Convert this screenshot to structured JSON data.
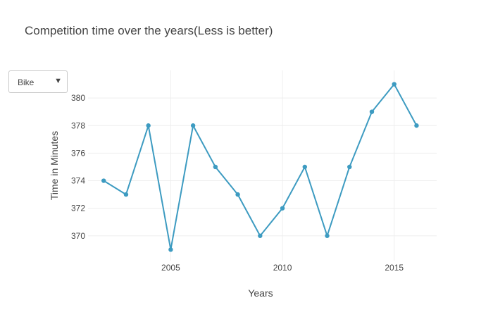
{
  "dropdown": {
    "selected": "Bike",
    "arrow_icon": "triangle-down-icon"
  },
  "chart_data": {
    "type": "line",
    "title": "Competition time over the years(Less is better)",
    "xlabel": "Years",
    "ylabel": "Time in Minutes",
    "x": [
      2002,
      2003,
      2004,
      2005,
      2006,
      2007,
      2008,
      2009,
      2010,
      2011,
      2012,
      2013,
      2014,
      2015,
      2016
    ],
    "series": [
      {
        "values": [
          374,
          373,
          378,
          369,
          378,
          375,
          373,
          370,
          372,
          375,
          370,
          375,
          379,
          381,
          378
        ],
        "color": "#3d9bc1"
      }
    ],
    "xlim": [
      2001.3,
      2016.9
    ],
    "ylim": [
      368.2,
      382.0
    ],
    "xticks": [
      2005,
      2010,
      2015
    ],
    "yticks": [
      370,
      372,
      374,
      376,
      378,
      380
    ],
    "grid": true,
    "grid_color": "#eeeeee",
    "legend": false
  }
}
